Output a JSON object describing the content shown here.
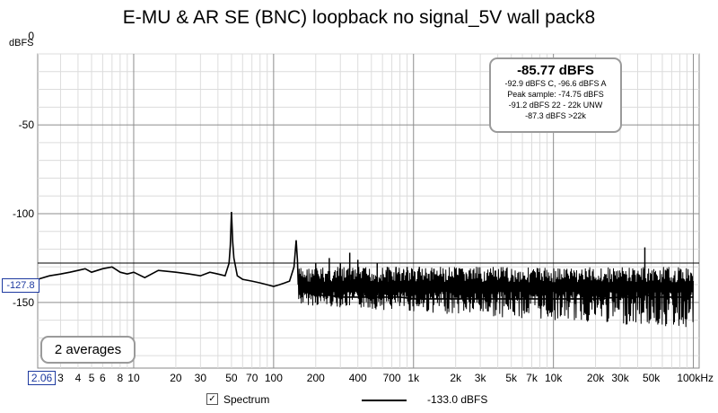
{
  "chart_data": {
    "type": "line",
    "title": "E-MU & AR SE (BNC) loopback no signal_5V wall pack8",
    "ylabel": "dBFS",
    "xlabel": "",
    "x_scale": "log",
    "xlim": [
      2.06,
      110000
    ],
    "ylim": [
      -187,
      -10
    ],
    "grid": true,
    "y_ticks": [
      0,
      -50,
      -100,
      -150
    ],
    "x_ticks": [
      {
        "v": 3,
        "label": "3"
      },
      {
        "v": 4,
        "label": "4"
      },
      {
        "v": 5,
        "label": "5"
      },
      {
        "v": 6,
        "label": "6"
      },
      {
        "v": 8,
        "label": "8"
      },
      {
        "v": 10,
        "label": "10"
      },
      {
        "v": 20,
        "label": "20"
      },
      {
        "v": 30,
        "label": "30"
      },
      {
        "v": 50,
        "label": "50"
      },
      {
        "v": 70,
        "label": "70"
      },
      {
        "v": 100,
        "label": "100"
      },
      {
        "v": 200,
        "label": "200"
      },
      {
        "v": 400,
        "label": "400"
      },
      {
        "v": 700,
        "label": "700"
      },
      {
        "v": 1000,
        "label": "1k"
      },
      {
        "v": 2000,
        "label": "2k"
      },
      {
        "v": 3000,
        "label": "3k"
      },
      {
        "v": 5000,
        "label": "5k"
      },
      {
        "v": 7000,
        "label": "7k"
      },
      {
        "v": 10000,
        "label": "10k"
      },
      {
        "v": 20000,
        "label": "20k"
      },
      {
        "v": 30000,
        "label": "30k"
      },
      {
        "v": 50000,
        "label": "50k"
      },
      {
        "v": 100000,
        "label": "100kHz"
      }
    ],
    "series": [
      {
        "name": "Spectrum",
        "color": "#000000",
        "x": [
          2.06,
          2.5,
          3,
          3.5,
          4,
          4.5,
          5,
          6,
          7,
          8,
          9,
          10,
          12,
          15,
          20,
          25,
          30,
          35,
          40,
          45,
          48,
          49,
          50,
          51,
          52,
          55,
          60,
          70,
          80,
          90,
          100,
          110,
          120,
          130,
          140,
          145,
          148,
          150,
          152,
          155,
          160,
          180,
          200,
          250,
          300,
          350,
          400,
          450,
          500,
          600,
          700,
          800,
          1000,
          1500,
          2000,
          3000,
          5000,
          7000,
          10000,
          15000,
          20000,
          30000,
          40000,
          45000,
          50000,
          70000,
          100000
        ],
        "y": [
          -137,
          -135,
          -134,
          -133,
          -132,
          -131,
          -133,
          -131,
          -130,
          -133,
          -134,
          -133,
          -136,
          -132,
          -133,
          -134,
          -135,
          -133,
          -134,
          -135,
          -128,
          -118,
          -99,
          -116,
          -125,
          -135,
          -137,
          -138,
          -139,
          -140,
          -141,
          -140,
          -139,
          -138,
          -130,
          -115,
          -126,
          -140,
          -135,
          -141,
          -143,
          -145,
          -146,
          -146,
          -147,
          -147,
          -147,
          -147,
          -147,
          -147,
          -147,
          -147,
          -148,
          -148,
          -148,
          -148,
          -148,
          -148,
          -148,
          -148,
          -148,
          -147,
          -147,
          -145,
          -147,
          -147,
          -147
        ],
        "spikes": [
          {
            "x": 200,
            "y": -128
          },
          {
            "x": 250,
            "y": -125
          },
          {
            "x": 300,
            "y": -128
          },
          {
            "x": 350,
            "y": -122
          },
          {
            "x": 400,
            "y": -126
          },
          {
            "x": 450,
            "y": -131
          },
          {
            "x": 550,
            "y": -128
          },
          {
            "x": 650,
            "y": -130
          },
          {
            "x": 750,
            "y": -130
          },
          {
            "x": 850,
            "y": -132
          },
          {
            "x": 900,
            "y": -130
          },
          {
            "x": 1100,
            "y": -130
          },
          {
            "x": 1400,
            "y": -131
          },
          {
            "x": 2500,
            "y": -132
          },
          {
            "x": 45000,
            "y": -119
          }
        ],
        "envelope": {
          "top": -130,
          "bottom": -165,
          "from": 150,
          "to": 100000
        }
      }
    ]
  },
  "info_box": {
    "main": "-85.77 dBFS",
    "lines": [
      "-92.9 dBFS C, -96.6 dBFS A",
      "Peak sample: -74.75 dBFS",
      "-91.2 dBFS 22 - 22k UNW",
      "-87.3 dBFS >22k"
    ]
  },
  "averages_label": "2 averages",
  "cursor_readout": "-127.8",
  "x_min_label": "2.06",
  "legend": {
    "checked": true,
    "check_glyph": "✓",
    "label": "Spectrum",
    "value": "-133.0 dBFS"
  }
}
